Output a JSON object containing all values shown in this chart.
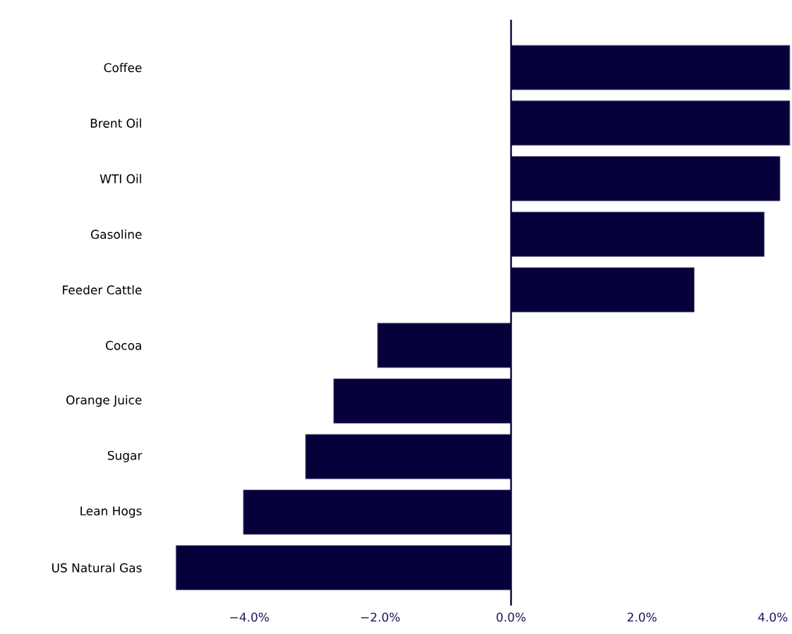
{
  "chart_data": {
    "type": "bar",
    "orientation": "horizontal",
    "categories": [
      "Coffee",
      "Brent Oil",
      "WTI Oil",
      "Gasoline",
      "Feeder Cattle",
      "Cocoa",
      "Orange Juice",
      "Sugar",
      "Lean Hogs",
      "US Natural Gas"
    ],
    "values": [
      4.26,
      4.26,
      4.11,
      3.87,
      2.8,
      -2.04,
      -2.71,
      -3.14,
      -4.09,
      -5.12
    ],
    "color": "#06003a",
    "xticks": [
      {
        "value": -4,
        "label": "−4.0%"
      },
      {
        "value": -2,
        "label": "−2.0%"
      },
      {
        "value": 0,
        "label": "0.0%"
      },
      {
        "value": 2,
        "label": "2.0%"
      },
      {
        "value": 4,
        "label": "4.0%"
      }
    ],
    "ref_lines": [
      {
        "axis": "x",
        "value": 0,
        "color": "#06003a"
      }
    ],
    "xlim": [
      -5.12,
      4.26
    ],
    "grid": false
  }
}
